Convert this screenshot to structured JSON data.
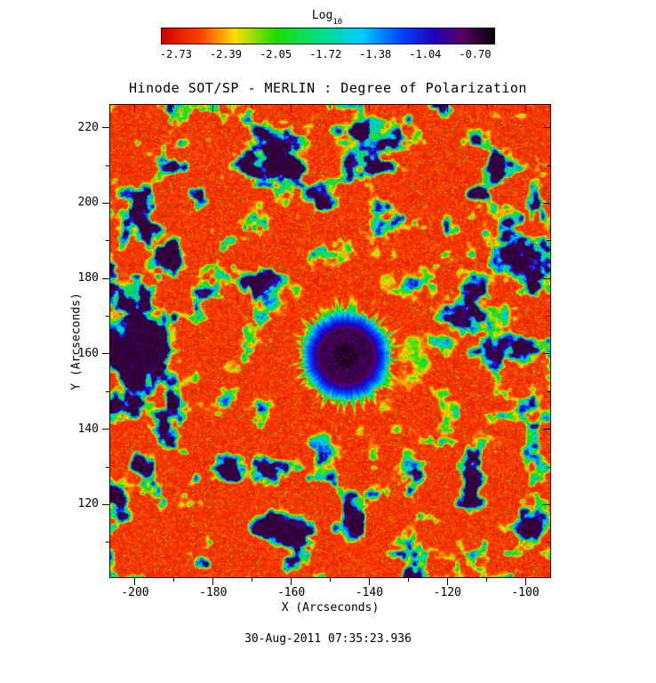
{
  "figure": {
    "title": "Hinode SOT/SP - MERLIN : Degree of Polarization",
    "timestamp": "30-Aug-2011 07:35:23.936"
  },
  "colorbar": {
    "label_base": "Log",
    "label_subscript": "10"
  },
  "chart_data": {
    "type": "heatmap",
    "title": "Hinode SOT/SP - MERLIN : Degree of Polarization",
    "annotation": "30-Aug-2011 07:35:23.936",
    "xlabel": "X (Arcseconds)",
    "ylabel": "Y (Arcseconds)",
    "xlim": [
      -206.6,
      -93.4
    ],
    "ylim": [
      100.5,
      226.3
    ],
    "x_major_ticks": [
      -200,
      -180,
      -160,
      -140,
      -120,
      -100
    ],
    "x_minor_ticks": [
      -190,
      -170,
      -150,
      -130,
      -110
    ],
    "y_major_ticks": [
      120,
      140,
      160,
      180,
      200,
      220
    ],
    "y_minor_ticks": [
      110,
      130,
      150,
      170,
      190,
      210
    ],
    "colorbar": {
      "label": "Log10",
      "ticks": [
        -2.73,
        -2.39,
        -2.05,
        -1.72,
        -1.38,
        -1.04,
        -0.7
      ],
      "range": [
        -2.83,
        -0.59
      ],
      "gradient_stops": [
        [
          0.0,
          "#d00000"
        ],
        [
          0.12,
          "#ff4400"
        ],
        [
          0.22,
          "#ffdd00"
        ],
        [
          0.34,
          "#22dd00"
        ],
        [
          0.48,
          "#00dd88"
        ],
        [
          0.6,
          "#00ccff"
        ],
        [
          0.72,
          "#0044ff"
        ],
        [
          0.82,
          "#2200bb"
        ],
        [
          0.9,
          "#550066"
        ],
        [
          1.0,
          "#0a0008"
        ]
      ]
    },
    "features": {
      "background_log10_pol": -2.7,
      "network_log10_pol": -1.5,
      "sunspot": {
        "center_x_arcsec": -146,
        "center_y_arcsec": 159.5,
        "umbra_radius_arcsec": 6.8,
        "penumbra_radius_arcsec": 10.7,
        "umbra_log10_pol": -0.75,
        "penumbra_log10_pol": -1.1
      },
      "network_patches": [
        {
          "x": -200.5,
          "y": 163,
          "r": 9,
          "amp": 0.26
        },
        {
          "x": -201.0,
          "y": 148,
          "r": 8,
          "amp": 0.22
        },
        {
          "x": -196.5,
          "y": 185,
          "r": 7,
          "amp": 0.2
        },
        {
          "x": -166.0,
          "y": 211,
          "r": 8,
          "amp": 0.22
        },
        {
          "x": -109.0,
          "y": 210,
          "r": 7,
          "amp": 0.2
        },
        {
          "x": -101.5,
          "y": 185,
          "r": 6,
          "amp": 0.16
        },
        {
          "x": -195.5,
          "y": 131,
          "r": 6,
          "amp": 0.14
        },
        {
          "x": -159.0,
          "y": 113,
          "r": 7,
          "amp": 0.16
        }
      ],
      "seam_columns_arcsec": [
        -136,
        -119.5
      ]
    }
  }
}
